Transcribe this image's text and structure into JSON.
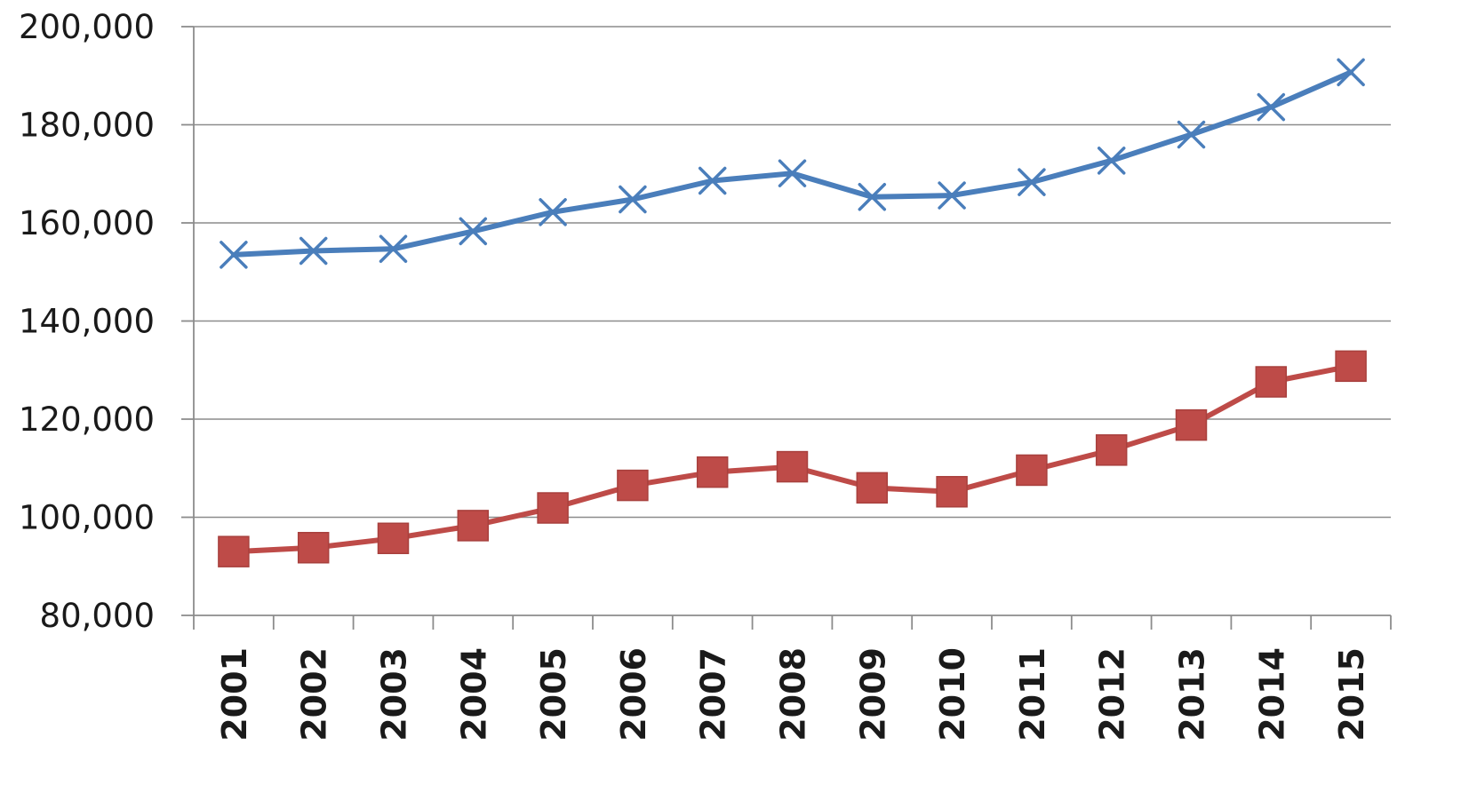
{
  "chart_data": {
    "type": "line",
    "title": "",
    "xlabel": "",
    "ylabel": "",
    "ylim": [
      80000,
      200000
    ],
    "y_ticks": [
      "80,000",
      "100,000",
      "120,000",
      "140,000",
      "160,000",
      "180,000",
      "200,000"
    ],
    "y_tick_values": [
      80000,
      100000,
      120000,
      140000,
      160000,
      180000,
      200000
    ],
    "categories": [
      "2001",
      "2002",
      "2003",
      "2004",
      "2005",
      "2006",
      "2007",
      "2008",
      "2009",
      "2010",
      "2011",
      "2012",
      "2013",
      "2014",
      "2015"
    ],
    "grid": true,
    "legend": "none",
    "series": [
      {
        "marker": "x",
        "color": "#4a7ebb",
        "values": [
          153500,
          154300,
          154700,
          158300,
          162200,
          164800,
          168600,
          170100,
          165300,
          165600,
          168300,
          172700,
          178000,
          183600,
          190700
        ]
      },
      {
        "marker": "square",
        "color": "#be4b48",
        "values": [
          93000,
          93800,
          95700,
          98300,
          101900,
          106500,
          109200,
          110300,
          106000,
          105200,
          109600,
          113700,
          118800,
          127600,
          130800
        ]
      }
    ]
  }
}
